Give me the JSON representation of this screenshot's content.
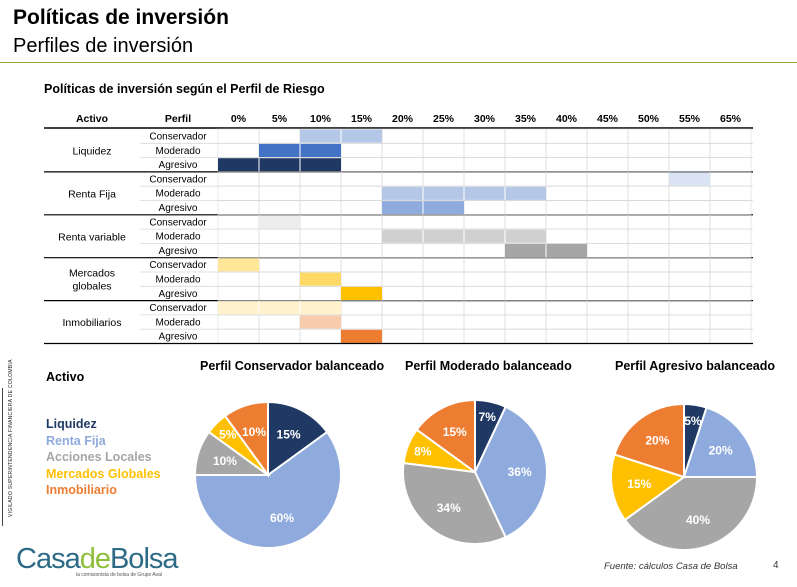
{
  "header": {
    "title": "Políticas de inversión",
    "subtitle": "Perfiles de inversión"
  },
  "colors": {
    "rule": "#8faa3a",
    "liquidez": "#1f3864",
    "renta_fija": "#8faadc",
    "acciones_locales": "#a6a6a6",
    "mercados_globales": "#ffc000",
    "inmobiliario": "#ed7d31"
  },
  "table": {
    "title": "Políticas de inversión según el Perfil de Riesgo",
    "headers": {
      "asset": "Activo",
      "profile": "Perfil"
    },
    "percent_labels": [
      "0%",
      "5%",
      "10%",
      "15%",
      "20%",
      "25%",
      "30%",
      "35%",
      "40%",
      "45%",
      "50%",
      "55%",
      "65%"
    ],
    "assets": [
      {
        "name": [
          "Liquidez"
        ],
        "rows": [
          {
            "profile": "Conservador",
            "from": 10,
            "to": 20,
            "color": "#b4c7e7"
          },
          {
            "profile": "Moderado",
            "from": 5,
            "to": 15,
            "color": "#4472c4"
          },
          {
            "profile": "Agresivo",
            "from": 0,
            "to": 15,
            "color": "#1f3864"
          }
        ]
      },
      {
        "name": [
          "Renta Fija"
        ],
        "rows": [
          {
            "profile": "Conservador",
            "from": 55,
            "to": 65,
            "color": "#dae3f3"
          },
          {
            "profile": "Moderado",
            "from": 20,
            "to": 40,
            "color": "#b4c7e7"
          },
          {
            "profile": "Agresivo",
            "from": 20,
            "to": 30,
            "color": "#8faadc"
          }
        ]
      },
      {
        "name": [
          "Renta variable"
        ],
        "rows": [
          {
            "profile": "Conservador",
            "from": 5,
            "to": 10,
            "color": "#ededed"
          },
          {
            "profile": "Moderado",
            "from": 20,
            "to": 40,
            "color": "#d0d0d0"
          },
          {
            "profile": "Agresivo",
            "from": 35,
            "to": 45,
            "color": "#a6a6a6"
          }
        ]
      },
      {
        "name": [
          "Mercados",
          "globales"
        ],
        "rows": [
          {
            "profile": "Conservador",
            "from": 0,
            "to": 5,
            "color": "#ffe699"
          },
          {
            "profile": "Moderado",
            "from": 10,
            "to": 15,
            "color": "#ffd966"
          },
          {
            "profile": "Agresivo",
            "from": 15,
            "to": 20,
            "color": "#ffc000"
          }
        ]
      },
      {
        "name": [
          "Inmobiliarios"
        ],
        "rows": [
          {
            "profile": "Conservador",
            "from": 0,
            "to": 15,
            "color": "#fff2cc"
          },
          {
            "profile": "Moderado",
            "from": 10,
            "to": 15,
            "color": "#f8cbad"
          },
          {
            "profile": "Agresivo",
            "from": 15,
            "to": 20,
            "color": "#ed7d31"
          }
        ]
      }
    ]
  },
  "pies_section": {
    "label": "Activo",
    "legend": [
      "Liquidez",
      "Renta Fija",
      "Acciones Locales",
      "Mercados Globales",
      "Inmobiliario"
    ]
  },
  "chart_data": [
    {
      "type": "pie",
      "title": "Perfil Conservador balanceado",
      "labels": [
        "Liquidez",
        "Renta Fija",
        "Acciones Locales",
        "Mercados Globales",
        "Inmobiliario"
      ],
      "values": [
        15,
        60,
        10,
        5,
        10
      ],
      "value_labels": [
        "15%",
        "60%",
        "10%",
        "5%",
        "10%"
      ],
      "colors": [
        "#1f3864",
        "#8faadc",
        "#a6a6a6",
        "#ffc000",
        "#ed7d31"
      ]
    },
    {
      "type": "pie",
      "title": "Perfil Moderado balanceado",
      "labels": [
        "Liquidez",
        "Renta Fija",
        "Acciones Locales",
        "Mercados Globales",
        "Inmobiliario"
      ],
      "values": [
        7,
        36,
        34,
        8,
        15
      ],
      "value_labels": [
        "7%",
        "36%",
        "34%",
        "8%",
        "15%"
      ],
      "colors": [
        "#1f3864",
        "#8faadc",
        "#a6a6a6",
        "#ffc000",
        "#ed7d31"
      ]
    },
    {
      "type": "pie",
      "title": "Perfil Agresivo balanceado",
      "labels": [
        "Liquidez",
        "Renta Fija",
        "Acciones Locales",
        "Mercados Globales",
        "Inmobiliario"
      ],
      "values": [
        5,
        20,
        40,
        15,
        20
      ],
      "value_labels": [
        "5%",
        "20%",
        "40%",
        "15%",
        "20%"
      ],
      "colors": [
        "#1f3864",
        "#8faadc",
        "#a6a6a6",
        "#ffc000",
        "#ed7d31"
      ]
    }
  ],
  "footer": {
    "logo_prefix": "Casa",
    "logo_de": "de",
    "logo_suffix": "Bolsa",
    "logo_tagline": "la comisionista de bolsa de Grupo Aval",
    "vertical_badge": "VIGILADO SUPERINTENDENCIA FINANCIERA DE COLOMBIA",
    "source": "Fuente: cálculos Casa de Bolsa",
    "page_number": "4"
  }
}
